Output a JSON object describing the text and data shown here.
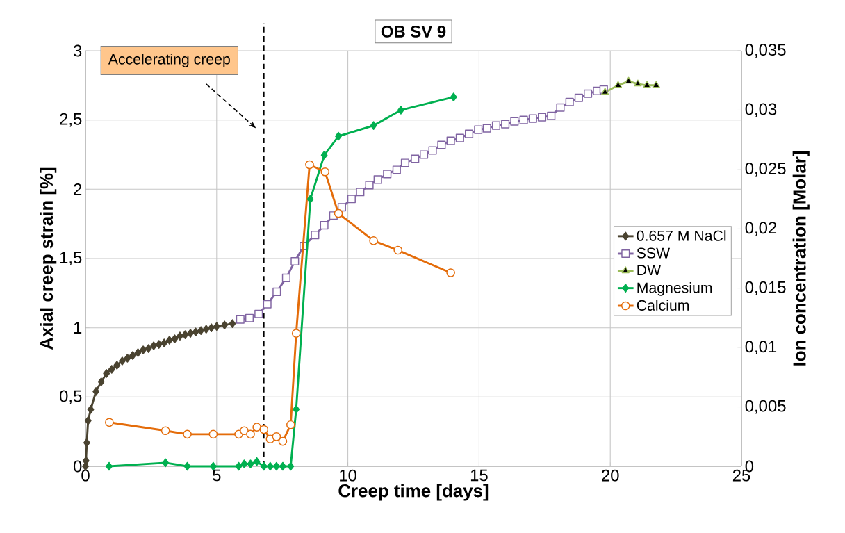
{
  "chart_data": {
    "type": "line",
    "title": "OB SV 9",
    "xlabel": "Creep time [days]",
    "ylabel": "Axial creep strain [%]",
    "y2label": "Ion concentration [Molar]",
    "annotations": [
      "Accelerating creep"
    ],
    "xlim": [
      0,
      25
    ],
    "xticks": [
      0,
      5,
      10,
      15,
      20,
      25
    ],
    "ylim": [
      0,
      3
    ],
    "yticks": [
      0,
      {
        "value": 0.5,
        "label": "0,5"
      },
      1,
      {
        "value": 1.5,
        "label": "1,5"
      },
      2,
      {
        "value": 2.5,
        "label": "2,5"
      },
      3
    ],
    "y2lim": [
      0,
      0.035
    ],
    "y2ticks": [
      0,
      {
        "value": 0.005,
        "label": "0,005"
      },
      {
        "value": 0.01,
        "label": "0,01"
      },
      {
        "value": 0.015,
        "label": "0,015"
      },
      {
        "value": 0.02,
        "label": "0,02"
      },
      {
        "value": 0.025,
        "label": "0,025"
      },
      {
        "value": 0.03,
        "label": "0,03"
      },
      {
        "value": 0.035,
        "label": "0,035"
      }
    ],
    "grid": true,
    "legend": "right",
    "ref_lines": [
      {
        "axis": "x",
        "value": 6.8,
        "color": "#000000",
        "line_style": "dashed"
      }
    ],
    "series": [
      {
        "name": "0.657 M NaCl",
        "color": "#4a4330",
        "marker": "diamond",
        "x": [
          0,
          0.02,
          0.05,
          0.1,
          0.2,
          0.4,
          0.6,
          0.8,
          1.0,
          1.2,
          1.4,
          1.6,
          1.8,
          2.0,
          2.2,
          2.4,
          2.6,
          2.8,
          3.0,
          3.2,
          3.4,
          3.6,
          3.8,
          4.0,
          4.2,
          4.4,
          4.6,
          4.8,
          5.0,
          5.3,
          5.6
        ],
        "values": [
          0,
          0.04,
          0.17,
          0.33,
          0.41,
          0.54,
          0.61,
          0.67,
          0.7,
          0.73,
          0.76,
          0.78,
          0.8,
          0.82,
          0.84,
          0.85,
          0.87,
          0.88,
          0.89,
          0.91,
          0.92,
          0.94,
          0.95,
          0.96,
          0.97,
          0.98,
          0.99,
          1.0,
          1.01,
          1.02,
          1.03
        ]
      },
      {
        "name": "SSW",
        "color": "#8064a2",
        "marker": "square",
        "x": [
          5.9,
          6.25,
          6.6,
          6.93,
          7.29,
          7.65,
          7.98,
          8.32,
          8.75,
          9.1,
          9.45,
          9.77,
          10.14,
          10.47,
          10.82,
          11.14,
          11.5,
          11.86,
          12.18,
          12.56,
          12.9,
          13.23,
          13.57,
          13.92,
          14.27,
          14.62,
          14.97,
          15.3,
          15.65,
          16.0,
          16.35,
          16.7,
          17.05,
          17.4,
          17.75,
          18.1,
          18.45,
          18.8,
          19.15,
          19.5,
          19.75
        ],
        "values": [
          1.06,
          1.07,
          1.1,
          1.17,
          1.26,
          1.36,
          1.48,
          1.59,
          1.67,
          1.74,
          1.81,
          1.87,
          1.93,
          1.98,
          2.03,
          2.07,
          2.11,
          2.14,
          2.19,
          2.22,
          2.25,
          2.28,
          2.32,
          2.35,
          2.37,
          2.4,
          2.43,
          2.44,
          2.46,
          2.47,
          2.49,
          2.5,
          2.51,
          2.52,
          2.53,
          2.59,
          2.63,
          2.66,
          2.69,
          2.71,
          2.72
        ]
      },
      {
        "name": "DW",
        "color": "#9bbb59",
        "marker": "triangle",
        "x": [
          19.8,
          20.3,
          20.7,
          21.05,
          21.4,
          21.75
        ],
        "values": [
          2.7,
          2.75,
          2.78,
          2.76,
          2.75,
          2.75
        ]
      },
      {
        "name": "Magnesium",
        "color": "#00b050",
        "marker": "diamond",
        "axis": "y2",
        "x": [
          0.9,
          3.05,
          3.88,
          4.87,
          5.84,
          6.05,
          6.29,
          6.53,
          6.8,
          7.04,
          7.28,
          7.52,
          7.82,
          8.03,
          8.57,
          9.1,
          9.64,
          10.98,
          12.02,
          14.03
        ],
        "values": [
          0,
          0.0003,
          0,
          0,
          0,
          0.0002,
          0.0002,
          0.0004,
          0,
          0,
          0,
          0,
          0,
          0.0048,
          0.0225,
          0.0262,
          0.0278,
          0.0287,
          0.03,
          0.0311
        ]
      },
      {
        "name": "Calcium",
        "color": "#e46c0a",
        "marker": "circle",
        "axis": "y2",
        "x": [
          0.91,
          3.05,
          3.88,
          4.87,
          5.84,
          6.05,
          6.29,
          6.53,
          6.8,
          7.04,
          7.28,
          7.52,
          7.82,
          8.03,
          8.54,
          9.13,
          9.64,
          10.98,
          11.91,
          13.92
        ],
        "values": [
          0.0037,
          0.003,
          0.0027,
          0.0027,
          0.0027,
          0.003,
          0.0027,
          0.0033,
          0.0031,
          0.0023,
          0.0025,
          0.0021,
          0.0035,
          0.0112,
          0.0254,
          0.0248,
          0.0213,
          0.019,
          0.0182,
          0.0163
        ]
      }
    ]
  }
}
